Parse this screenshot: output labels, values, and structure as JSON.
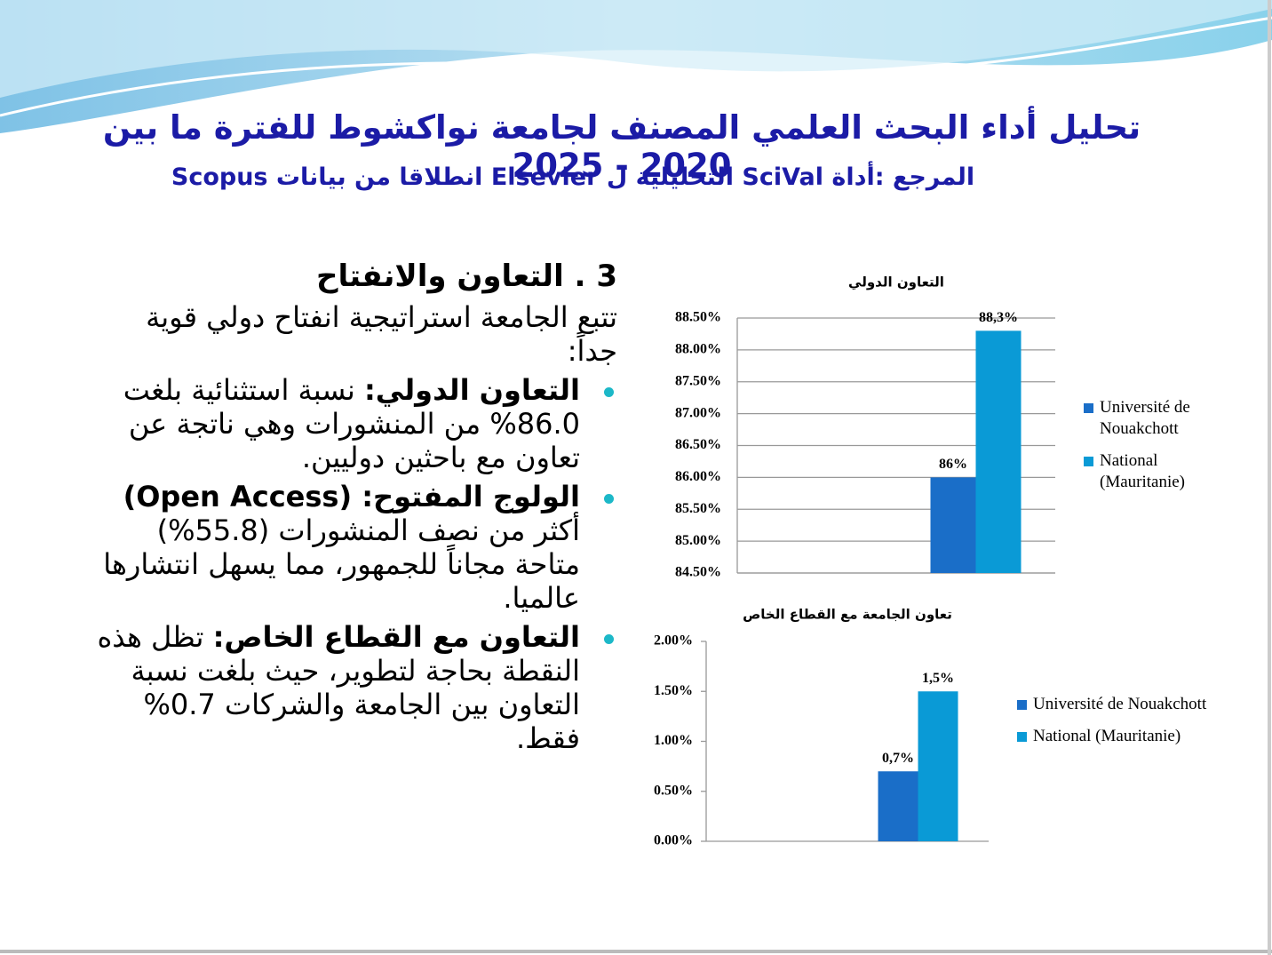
{
  "header": {
    "title": "تحليل أداء البحث العلمي المصنف لجامعة نواكشوط للفترة ما بين  2020 - 2025",
    "subtitle": "المرجع :أداة SciVal التحليلية ل Elsevier انطلاقا من بيانات Scopus"
  },
  "text": {
    "heading": "3 . التعاون والانفتاح",
    "intro": "تتبع الجامعة استراتيجية انفتاح دولي قوية جداً:",
    "bullets": [
      {
        "lead": "التعاون الدولي:",
        "text": "نسبة استثنائية بلغت 86.0% من المنشورات وهي ناتجة عن تعاون مع باحثين دوليين."
      },
      {
        "lead": "الولوج المفتوح: (Open Access)",
        "text": "أكثر من نصف المنشورات (55.8%) متاحة مجاناً للجمهور، مما يسهل انتشارها عالميا."
      },
      {
        "lead": "التعاون مع القطاع الخاص:",
        "text": "تظل هذه النقطة بحاجة لتطوير، حيث بلغت نسبة التعاون بين الجامعة والشركات 0.7% فقط."
      }
    ]
  },
  "chart_data": [
    {
      "type": "bar",
      "title": "التعاون الدولي",
      "categories": [
        null
      ],
      "series": [
        {
          "name": "Université de Nouakchott",
          "color": "#1a6ec8",
          "values": [
            86
          ],
          "value_labels": [
            "86%"
          ]
        },
        {
          "name": "National (Mauritanie)",
          "color": "#0a9ad6",
          "values": [
            88.3
          ],
          "value_labels": [
            "88,3%"
          ]
        }
      ],
      "ylim": [
        84.5,
        88.5
      ],
      "yticks": [
        {
          "value": 84.5,
          "label": "84.50%"
        },
        {
          "value": 85,
          "label": "85.00%"
        },
        {
          "value": 85.5,
          "label": "85.50%"
        },
        {
          "value": 86,
          "label": "86.00%"
        },
        {
          "value": 86.5,
          "label": "86.50%"
        },
        {
          "value": 87,
          "label": "87.00%"
        },
        {
          "value": 87.5,
          "label": "87.50%"
        },
        {
          "value": 88,
          "label": "88.00%"
        },
        {
          "value": 88.5,
          "label": "88.50%"
        }
      ],
      "grid": true,
      "legend": "right"
    },
    {
      "type": "bar",
      "title": "تعاون الجامعة مع القطاع الخاص",
      "categories": [
        null
      ],
      "series": [
        {
          "name": "Université de Nouakchott",
          "color": "#1a6ec8",
          "values": [
            0.7
          ],
          "value_labels": [
            "0,7%"
          ]
        },
        {
          "name": "National (Mauritanie)",
          "color": "#0a9ad6",
          "values": [
            1.5
          ],
          "value_labels": [
            "1,5%"
          ]
        }
      ],
      "ylim": [
        0,
        2
      ],
      "yticks": [
        {
          "value": 0,
          "label": "0.00%"
        },
        {
          "value": 0.5,
          "label": "0.50%"
        },
        {
          "value": 1,
          "label": "1.00%"
        },
        {
          "value": 1.5,
          "label": "1.50%"
        },
        {
          "value": 2,
          "label": "2.00%"
        }
      ],
      "grid": false,
      "legend": "right"
    }
  ]
}
